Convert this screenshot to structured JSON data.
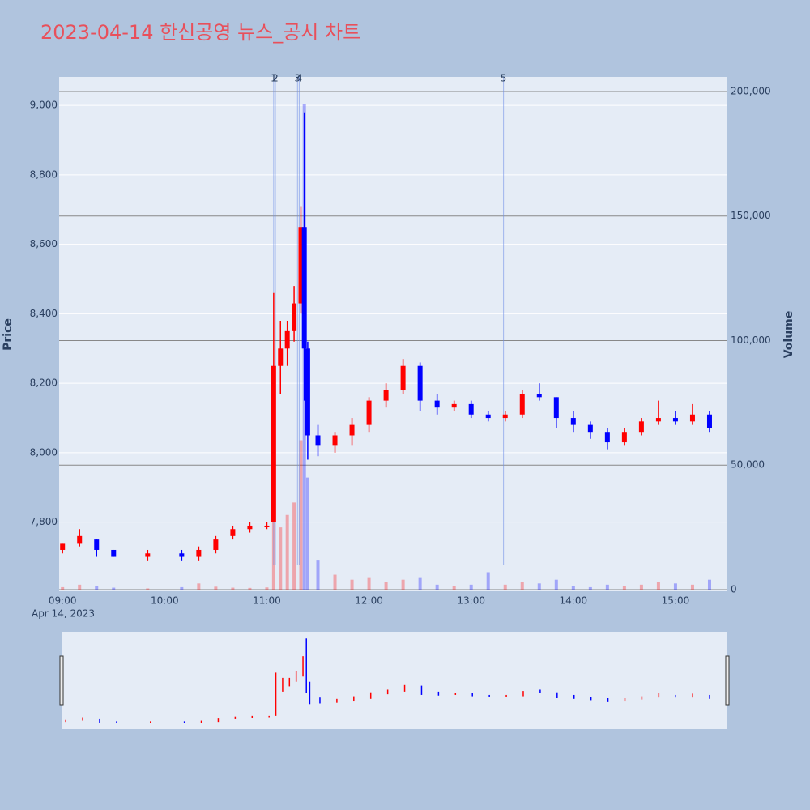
{
  "chart_data": {
    "type": "candlestick",
    "title": "2023-04-14 한신공영 뉴스_공시 차트",
    "y_label": "Price",
    "y2_label": "Volume",
    "date_label": "Apr 14, 2023",
    "x": [
      "09:00",
      "09:10",
      "09:20",
      "09:30",
      "09:50",
      "10:10",
      "10:20",
      "10:30",
      "10:40",
      "10:50",
      "11:00",
      "11:04",
      "11:08",
      "11:12",
      "11:16",
      "11:20",
      "11:22",
      "11:24",
      "11:30",
      "11:40",
      "11:50",
      "12:00",
      "12:10",
      "12:20",
      "12:30",
      "12:40",
      "12:50",
      "13:00",
      "13:10",
      "13:20",
      "13:30",
      "13:40",
      "13:50",
      "14:00",
      "14:10",
      "14:20",
      "14:30",
      "14:40",
      "14:50",
      "15:00",
      "15:10",
      "15:20"
    ],
    "open": [
      7720,
      7740,
      7750,
      7720,
      7700,
      7710,
      7700,
      7720,
      7760,
      7780,
      7790,
      7800,
      8250,
      8300,
      8350,
      8430,
      8650,
      8300,
      8050,
      8020,
      8050,
      8080,
      8150,
      8180,
      8250,
      8150,
      8130,
      8140,
      8110,
      8100,
      8110,
      8170,
      8160,
      8100,
      8080,
      8060,
      8030,
      8060,
      8090,
      8100,
      8090,
      8110
    ],
    "high": [
      7740,
      7780,
      7750,
      7720,
      7720,
      7720,
      7730,
      7760,
      7790,
      7800,
      7800,
      8460,
      8380,
      8380,
      8480,
      8710,
      8980,
      8320,
      8080,
      8060,
      8100,
      8160,
      8200,
      8270,
      8260,
      8170,
      8150,
      8150,
      8120,
      8120,
      8180,
      8200,
      8160,
      8120,
      8090,
      8070,
      8070,
      8100,
      8150,
      8120,
      8140,
      8120
    ],
    "low": [
      7710,
      7730,
      7700,
      7700,
      7690,
      7690,
      7690,
      7710,
      7750,
      7770,
      7780,
      7800,
      8170,
      8250,
      8320,
      8400,
      8150,
      7980,
      7990,
      8000,
      8020,
      8060,
      8130,
      8170,
      8120,
      8110,
      8120,
      8100,
      8090,
      8090,
      8100,
      8150,
      8070,
      8060,
      8040,
      8010,
      8020,
      8050,
      8080,
      8080,
      8080,
      8060
    ],
    "close": [
      7740,
      7760,
      7720,
      7700,
      7710,
      7700,
      7720,
      7750,
      7780,
      7790,
      7790,
      8250,
      8300,
      8350,
      8430,
      8650,
      8300,
      8050,
      8020,
      8050,
      8080,
      8150,
      8180,
      8250,
      8150,
      8130,
      8140,
      8110,
      8100,
      8110,
      8170,
      8160,
      8100,
      8080,
      8060,
      8030,
      8060,
      8090,
      8100,
      8090,
      8110,
      8070
    ],
    "volume": [
      1000,
      2000,
      1500,
      800,
      500,
      1000,
      2500,
      1200,
      800,
      700,
      900,
      60000,
      25000,
      30000,
      35000,
      60000,
      195000,
      45000,
      12000,
      6000,
      4000,
      5000,
      3000,
      4000,
      5000,
      2000,
      1500,
      2000,
      7000,
      2000,
      3000,
      2500,
      4000,
      1500,
      1000,
      2000,
      1500,
      2000,
      3000,
      2500,
      2000,
      4000
    ],
    "up_color": "#ff0000",
    "down_color": "#0000ff",
    "xlim": [
      "08:58",
      "15:30"
    ],
    "xticks": [
      "09:00",
      "10:00",
      "11:00",
      "12:00",
      "13:00",
      "14:00",
      "15:00"
    ],
    "ylim": [
      7601,
      9082
    ],
    "yticks": [
      {
        "value": 7800,
        "label": "7,800"
      },
      {
        "value": 8000,
        "label": "8,000"
      },
      {
        "value": 8200,
        "label": "8,200"
      },
      {
        "value": 8400,
        "label": "8,400"
      },
      {
        "value": 8600,
        "label": "8,600"
      },
      {
        "value": 8800,
        "label": "8,800"
      },
      {
        "value": 9000,
        "label": "9,000"
      }
    ],
    "y2lim": [
      -650,
      205850
    ],
    "y2ticks": [
      0,
      {
        "value": 50000,
        "label": "50,000"
      },
      {
        "value": 100000,
        "label": "100,000"
      },
      {
        "value": 150000,
        "label": "150,000"
      },
      {
        "value": 200000,
        "label": "200,000"
      }
    ],
    "annotations": [
      {
        "x": "11:04",
        "text": "1"
      },
      {
        "x": "11:05",
        "text": "2"
      },
      {
        "x": "11:18",
        "text": "3"
      },
      {
        "x": "11:19",
        "text": "4"
      },
      {
        "x": "13:19",
        "text": "5"
      }
    ],
    "grid": true
  }
}
